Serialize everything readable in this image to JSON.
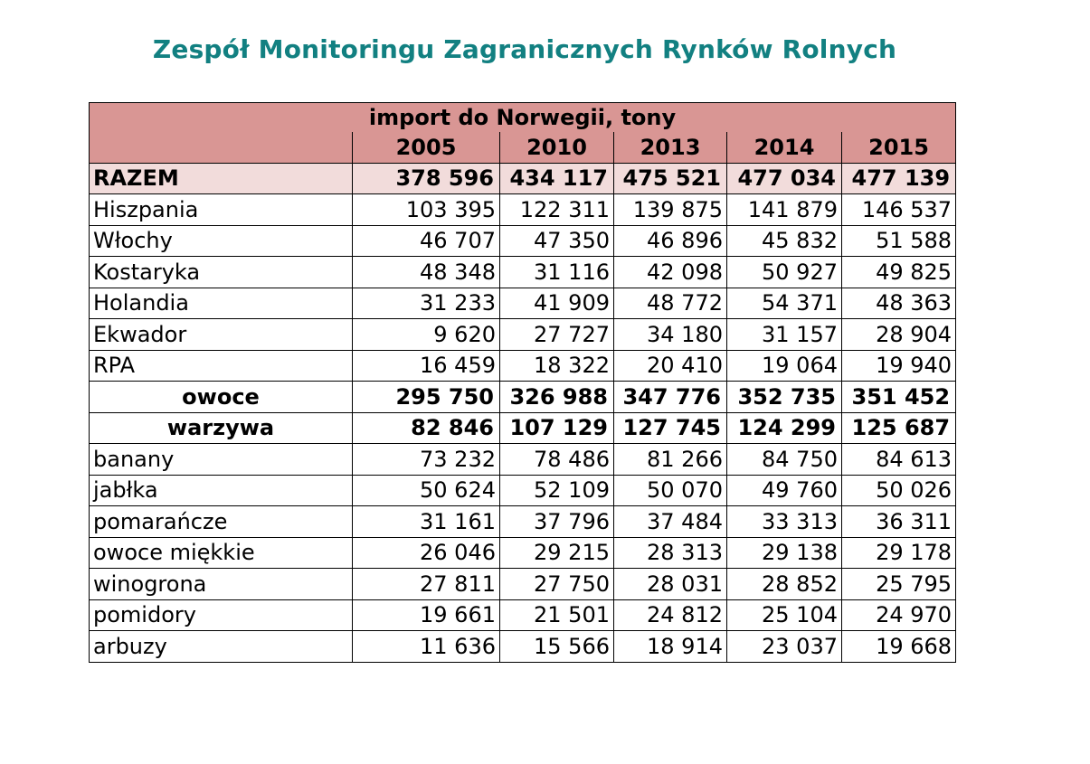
{
  "title": "Zespół Monitoringu Zagranicznych Rynków Rolnych",
  "table": {
    "caption": "import do Norwegii, tony",
    "years": [
      "2005",
      "2010",
      "2013",
      "2014",
      "2015"
    ],
    "total": {
      "label": "RAZEM",
      "values": [
        "378 596",
        "434 117",
        "475 521",
        "477 034",
        "477 139"
      ]
    },
    "countries": [
      {
        "label": "Hiszpania",
        "values": [
          "103 395",
          "122 311",
          "139 875",
          "141 879",
          "146 537"
        ]
      },
      {
        "label": "Włochy",
        "values": [
          "46 707",
          "47 350",
          "46 896",
          "45 832",
          "51 588"
        ]
      },
      {
        "label": "Kostaryka",
        "values": [
          "48 348",
          "31 116",
          "42 098",
          "50 927",
          "49 825"
        ]
      },
      {
        "label": "Holandia",
        "values": [
          "31 233",
          "41 909",
          "48 772",
          "54 371",
          "48 363"
        ]
      },
      {
        "label": "Ekwador",
        "values": [
          "9 620",
          "27 727",
          "34 180",
          "31 157",
          "28 904"
        ]
      },
      {
        "label": "RPA",
        "values": [
          "16 459",
          "18 322",
          "20 410",
          "19 064",
          "19 940"
        ]
      }
    ],
    "subtotals": [
      {
        "label": "owoce",
        "values": [
          "295 750",
          "326 988",
          "347 776",
          "352 735",
          "351 452"
        ]
      },
      {
        "label": "warzywa",
        "values": [
          "82 846",
          "107 129",
          "127 745",
          "124 299",
          "125 687"
        ]
      }
    ],
    "products": [
      {
        "label": "banany",
        "values": [
          "73 232",
          "78 486",
          "81 266",
          "84 750",
          "84 613"
        ]
      },
      {
        "label": "jabłka",
        "values": [
          "50 624",
          "52 109",
          "50 070",
          "49 760",
          "50 026"
        ]
      },
      {
        "label": "pomarańcze",
        "values": [
          "31 161",
          "37 796",
          "37 484",
          "33 313",
          "36 311"
        ]
      },
      {
        "label": "owoce miękkie",
        "values": [
          "26 046",
          "29 215",
          "28 313",
          "29 138",
          "29 178"
        ]
      },
      {
        "label": "winogrona",
        "values": [
          "27 811",
          "27 750",
          "28 031",
          "28 852",
          "25 795"
        ]
      },
      {
        "label": "pomidory",
        "values": [
          "19 661",
          "21 501",
          "24 812",
          "25 104",
          "24 970"
        ]
      },
      {
        "label": "arbuzy",
        "values": [
          "11 636",
          "15 566",
          "18 914",
          "23 037",
          "19 668"
        ]
      }
    ]
  },
  "colors": {
    "title": "#128081",
    "header_fill": "#d99694",
    "total_fill": "#f2dcdb"
  }
}
